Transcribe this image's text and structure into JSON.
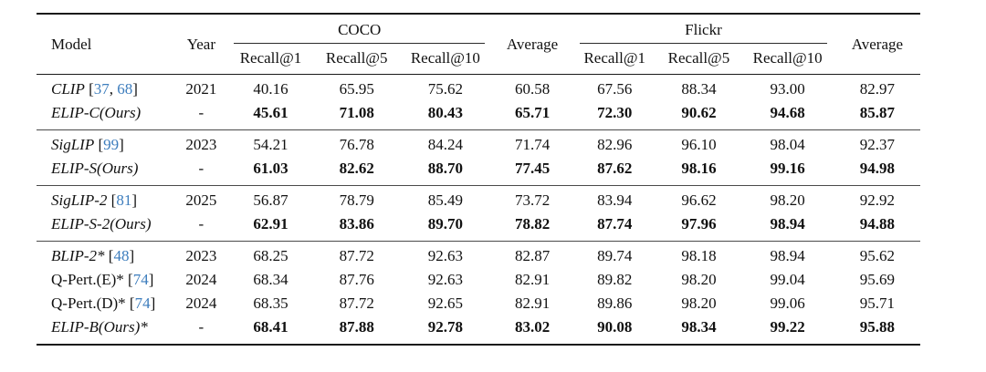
{
  "header": {
    "model": "Model",
    "year": "Year",
    "groups": {
      "coco": "COCO",
      "average1": "Average",
      "flickr": "Flickr",
      "average2": "Average"
    },
    "subcolumns": [
      "Recall@1",
      "Recall@5",
      "Recall@10"
    ]
  },
  "blocks": [
    {
      "rows": [
        {
          "model": "CLIP",
          "citations": [
            "37",
            "68"
          ],
          "year": "2021",
          "italic": true,
          "bold": false,
          "values": [
            "40.16",
            "65.95",
            "75.62",
            "60.58",
            "67.56",
            "88.34",
            "93.00",
            "82.97"
          ]
        },
        {
          "model": "ELIP-C(Ours)",
          "citations": [],
          "year": "-",
          "italic": true,
          "bold": true,
          "values": [
            "45.61",
            "71.08",
            "80.43",
            "65.71",
            "72.30",
            "90.62",
            "94.68",
            "85.87"
          ]
        }
      ]
    },
    {
      "rows": [
        {
          "model": "SigLIP",
          "citations": [
            "99"
          ],
          "year": "2023",
          "italic": true,
          "bold": false,
          "values": [
            "54.21",
            "76.78",
            "84.24",
            "71.74",
            "82.96",
            "96.10",
            "98.04",
            "92.37"
          ]
        },
        {
          "model": "ELIP-S(Ours)",
          "citations": [],
          "year": "-",
          "italic": true,
          "bold": true,
          "values": [
            "61.03",
            "82.62",
            "88.70",
            "77.45",
            "87.62",
            "98.16",
            "99.16",
            "94.98"
          ]
        }
      ]
    },
    {
      "rows": [
        {
          "model": "SigLIP-2",
          "citations": [
            "81"
          ],
          "year": "2025",
          "italic": true,
          "bold": false,
          "values": [
            "56.87",
            "78.79",
            "85.49",
            "73.72",
            "83.94",
            "96.62",
            "98.20",
            "92.92"
          ]
        },
        {
          "model": "ELIP-S-2(Ours)",
          "citations": [],
          "year": "-",
          "italic": true,
          "bold": true,
          "values": [
            "62.91",
            "83.86",
            "89.70",
            "78.82",
            "87.74",
            "97.96",
            "98.94",
            "94.88"
          ]
        }
      ]
    },
    {
      "rows": [
        {
          "model": "BLIP-2*",
          "citations": [
            "48"
          ],
          "year": "2023",
          "italic": true,
          "bold": false,
          "values": [
            "68.25",
            "87.72",
            "92.63",
            "82.87",
            "89.74",
            "98.18",
            "98.94",
            "95.62"
          ]
        },
        {
          "model": "Q-Pert.(E)*",
          "citations": [
            "74"
          ],
          "year": "2024",
          "italic": false,
          "bold": false,
          "values": [
            "68.34",
            "87.76",
            "92.63",
            "82.91",
            "89.82",
            "98.20",
            "99.04",
            "95.69"
          ]
        },
        {
          "model": "Q-Pert.(D)*",
          "citations": [
            "74"
          ],
          "year": "2024",
          "italic": false,
          "bold": false,
          "values": [
            "68.35",
            "87.72",
            "92.65",
            "82.91",
            "89.86",
            "98.20",
            "99.06",
            "95.71"
          ]
        },
        {
          "model": "ELIP-B(Ours)*",
          "citations": [],
          "year": "-",
          "italic": true,
          "bold": true,
          "values": [
            "68.41",
            "87.88",
            "92.78",
            "83.02",
            "90.08",
            "98.34",
            "99.22",
            "95.88"
          ]
        }
      ]
    }
  ],
  "colors": {
    "citation_link": "#3d7dbd"
  }
}
